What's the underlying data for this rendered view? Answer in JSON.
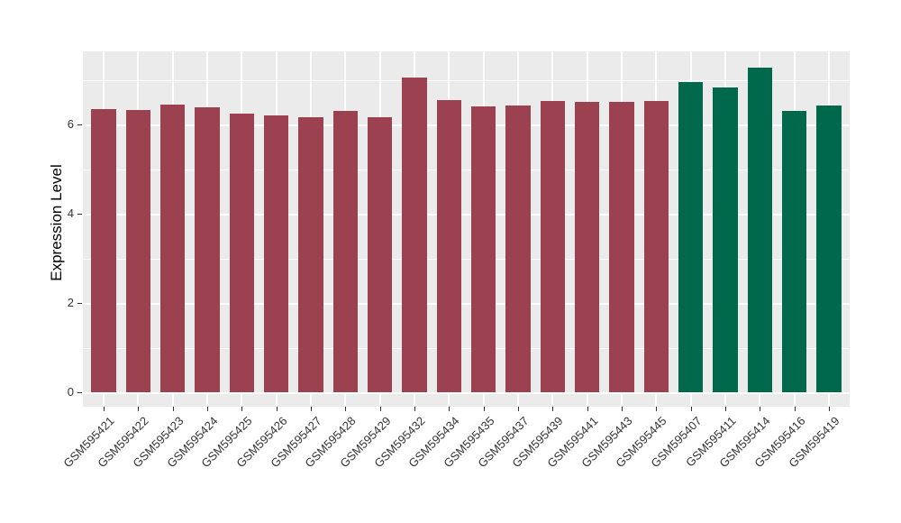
{
  "chart_data": {
    "type": "bar",
    "title": "",
    "xlabel": "",
    "ylabel": "Expression Level",
    "categories": [
      "GSM595421",
      "GSM595422",
      "GSM595423",
      "GSM595424",
      "GSM595425",
      "GSM595426",
      "GSM595427",
      "GSM595428",
      "GSM595429",
      "GSM595432",
      "GSM595434",
      "GSM595435",
      "GSM595437",
      "GSM595439",
      "GSM595441",
      "GSM595443",
      "GSM595445",
      "GSM595407",
      "GSM595411",
      "GSM595414",
      "GSM595416",
      "GSM595419"
    ],
    "values": [
      6.35,
      6.32,
      6.45,
      6.38,
      6.24,
      6.2,
      6.16,
      6.31,
      6.16,
      7.05,
      6.54,
      6.4,
      6.43,
      6.53,
      6.5,
      6.5,
      6.52,
      6.94,
      6.82,
      7.28,
      6.31,
      6.43
    ],
    "bar_colors": [
      "#9B4150",
      "#9B4150",
      "#9B4150",
      "#9B4150",
      "#9B4150",
      "#9B4150",
      "#9B4150",
      "#9B4150",
      "#9B4150",
      "#9B4150",
      "#9B4150",
      "#9B4150",
      "#9B4150",
      "#9B4150",
      "#9B4150",
      "#9B4150",
      "#9B4150",
      "#01694B",
      "#01694B",
      "#01694B",
      "#01694B",
      "#01694B"
    ],
    "yticks": [
      0,
      2,
      4,
      6
    ],
    "minor_gridlines": [
      1,
      3,
      5,
      7
    ],
    "ylim": [
      -0.32,
      7.64
    ],
    "legend": "none",
    "grid": true,
    "colors": {
      "panel_background": "#EBEBEB",
      "grid": "#FFFFFF",
      "bar_red": "#9B4150",
      "bar_green": "#01694B",
      "axis_text": "#333333",
      "axis_title": "#000000",
      "tick_marks": "#333333",
      "figure_background": "#FFFFFF"
    }
  }
}
